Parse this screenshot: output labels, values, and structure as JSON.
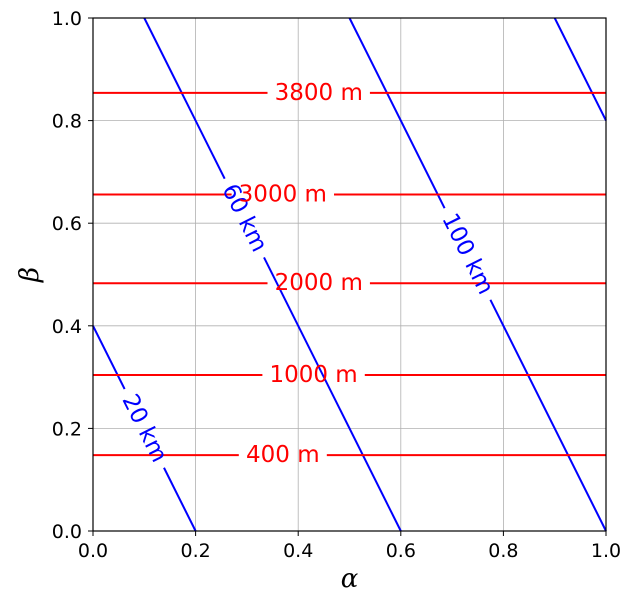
{
  "chart_data": {
    "type": "line",
    "title": "",
    "xlabel": "α",
    "ylabel": "β",
    "xlim": [
      0,
      1
    ],
    "ylim": [
      0,
      1
    ],
    "x_ticks": [
      "0.0",
      "0.2",
      "0.4",
      "0.6",
      "0.8",
      "1.0"
    ],
    "y_ticks": [
      "0.0",
      "0.2",
      "0.4",
      "0.6",
      "0.8",
      "1.0"
    ],
    "grid": true,
    "series": [
      {
        "label": "20 km",
        "color": "#0000ff",
        "points": [
          [
            0.0,
            0.4
          ],
          [
            0.2,
            0.0
          ]
        ],
        "label_at": [
          0.1,
          0.2
        ]
      },
      {
        "label": "60 km",
        "color": "#0000ff",
        "points": [
          [
            0.1,
            1.0
          ],
          [
            0.6,
            0.0
          ]
        ],
        "label_at": [
          0.295,
          0.61
        ]
      },
      {
        "label": "100 km",
        "color": "#0000ff",
        "points": [
          [
            0.5,
            1.0
          ],
          [
            1.0,
            0.0
          ]
        ],
        "label_at": [
          0.73,
          0.54
        ]
      },
      {
        "label": "",
        "color": "#0000ff",
        "points": [
          [
            0.9,
            1.0
          ],
          [
            1.0,
            0.8
          ]
        ],
        "label_at": null
      },
      {
        "label": "400 m",
        "color": "#ff0000",
        "points": [
          [
            0.0,
            0.148
          ],
          [
            1.0,
            0.148
          ]
        ],
        "label_at": [
          0.37,
          0.148
        ]
      },
      {
        "label": "1000 m",
        "color": "#ff0000",
        "points": [
          [
            0.0,
            0.304
          ],
          [
            1.0,
            0.304
          ]
        ],
        "label_at": [
          0.43,
          0.304
        ]
      },
      {
        "label": "2000 m",
        "color": "#ff0000",
        "points": [
          [
            0.0,
            0.483
          ],
          [
            1.0,
            0.483
          ]
        ],
        "label_at": [
          0.44,
          0.483
        ]
      },
      {
        "label": "3000 m",
        "color": "#ff0000",
        "points": [
          [
            0.0,
            0.656
          ],
          [
            1.0,
            0.656
          ]
        ],
        "label_at": [
          0.37,
          0.656
        ]
      },
      {
        "label": "3800 m",
        "color": "#ff0000",
        "points": [
          [
            0.0,
            0.854
          ],
          [
            1.0,
            0.854
          ]
        ],
        "label_at": [
          0.44,
          0.854
        ]
      }
    ]
  }
}
